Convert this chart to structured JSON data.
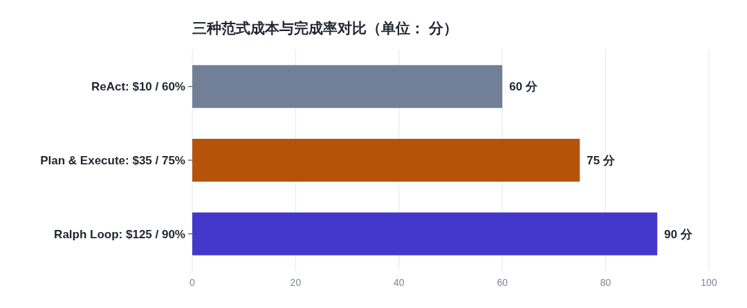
{
  "chart_data": {
    "type": "bar",
    "orientation": "horizontal",
    "title": "三种范式成本与完成率对比（单位： 分）",
    "categories": [
      "ReAct: $10 / 60%",
      "Plan & Execute: $35 / 75%",
      "Ralph Loop: $125 / 90%"
    ],
    "values": [
      60,
      75,
      90
    ],
    "colors": [
      "#718096",
      "#b45309",
      "#4338ca"
    ],
    "value_labels": [
      "60 分",
      "75 分",
      "90 分"
    ],
    "xlim": [
      0,
      100
    ],
    "xticks": [
      0,
      20,
      40,
      60,
      80,
      100
    ],
    "grid": "x"
  }
}
